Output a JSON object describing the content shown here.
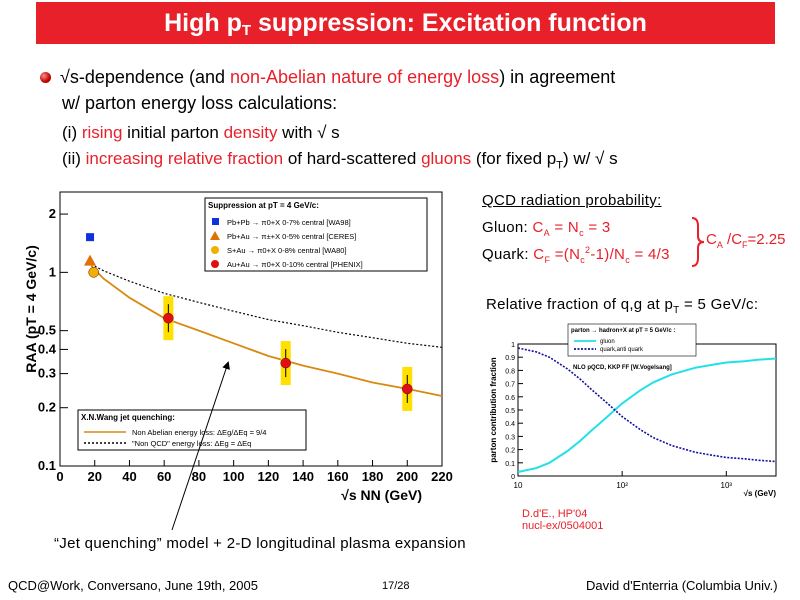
{
  "title": {
    "main": "High p",
    "sub": "T",
    "rest": " suppression: Excitation function"
  },
  "bullet": {
    "line1a": "√s-dependence (and ",
    "line1b": "non-Abelian nature of energy loss",
    "line1c": ") in agreement",
    "line2": "w/ parton energy loss calculations:"
  },
  "item1": {
    "a": "(i) ",
    "b": "rising",
    "c": " initial parton ",
    "d": "density",
    "e": " with √ s"
  },
  "item2": {
    "a": "(ii) ",
    "b": "increasing relative fraction",
    "c": " of hard-scattered ",
    "d": "gluons",
    "e": " (for fixed p",
    "f": "T",
    "g": ") w/ √ s"
  },
  "qcd": {
    "heading": "QCD radiation probability:",
    "gluon_a": "Gluon: ",
    "gluon_b": "C",
    "gluon_c": "A",
    "gluon_d": " = N",
    "gluon_e": "c",
    "gluon_f": " = 3",
    "quark_a": "Quark: ",
    "quark_b": "C",
    "quark_c": "F",
    "quark_d": " =(N",
    "quark_e": "c",
    "quark_f": "2",
    "quark_g": "-1)/N",
    "quark_h": "c",
    "quark_i": " = 4/3",
    "ratio_a": "C",
    "ratio_b": "A",
    "ratio_c": " /C",
    "ratio_d": "F",
    "ratio_e": "=2.25"
  },
  "fraction_caption": {
    "a": "Relative fraction of q,g at p",
    "b": "T",
    "c": " = 5 GeV/c:"
  },
  "jet_caption": "“Jet quenching” model + 2-D longitudinal plasma expansion",
  "reference": {
    "line1": "D.d'E., HP'04",
    "line2": "nucl-ex/0504001"
  },
  "footer": {
    "left": "QCD@Work, Conversano, June 19th, 2005",
    "center": "17/28",
    "right": "David d'Enterria (Columbia Univ.)"
  },
  "colors": {
    "accent": "#e8202a",
    "orange": "#d88a10",
    "cyan": "#22e0e8",
    "navy": "#1010a0"
  },
  "chart_data": [
    {
      "type": "scatter",
      "xlabel": "√s NN (GeV)",
      "ylabel": "RAA (pT = 4 GeV/c)",
      "xlim": [
        0,
        220
      ],
      "ylim": [
        0.1,
        2.6
      ],
      "yscale": "log",
      "x_ticks": [
        "0",
        "20",
        "40",
        "60",
        "80",
        "100",
        "120",
        "140",
        "160",
        "180",
        "200",
        "220"
      ],
      "y_ticks": [
        "0.1",
        "0.2",
        "0.3",
        "0.4",
        "0.5",
        "1",
        "2"
      ],
      "legend_title": "Suppression at pT = 4 GeV/c:",
      "series": [
        {
          "name": "Pb+Pb → π0+X  0-7% central [WA98]",
          "color": "#1030e0",
          "marker": "square",
          "points": [
            {
              "x": 17.3,
              "y": 1.52
            }
          ]
        },
        {
          "name": "Pb+Au → π±+X  0-5% central [CERES]",
          "color": "#e07000",
          "marker": "triangle",
          "points": [
            {
              "x": 17.3,
              "y": 1.15
            }
          ]
        },
        {
          "name": "S+Au → π0+X  0-8% central [WA80]",
          "color": "#f0b000",
          "marker": "circle",
          "points": [
            {
              "x": 19.4,
              "y": 1.0
            }
          ]
        },
        {
          "name": "Au+Au → π0+X  0-10% central [PHENIX]",
          "color": "#e01010",
          "marker": "circle",
          "points": [
            {
              "x": 62.4,
              "y": 0.58
            },
            {
              "x": 130,
              "y": 0.34
            },
            {
              "x": 200,
              "y": 0.25
            }
          ]
        }
      ],
      "theory_legend_title": "X.N.Wang jet quenching:",
      "curves": [
        {
          "name": "Non Abelian energy loss: ΔEg/ΔEq = 9/4",
          "style": "solid",
          "color": "#d88a10",
          "points": [
            [
              18,
              1.08
            ],
            [
              25,
              0.93
            ],
            [
              40,
              0.74
            ],
            [
              60,
              0.58
            ],
            [
              80,
              0.5
            ],
            [
              100,
              0.43
            ],
            [
              120,
              0.37
            ],
            [
              140,
              0.33
            ],
            [
              160,
              0.3
            ],
            [
              180,
              0.27
            ],
            [
              200,
              0.25
            ],
            [
              220,
              0.23
            ]
          ]
        },
        {
          "name": "\"Non QCD\" energy loss: ΔEg = ΔEq",
          "style": "dotted",
          "color": "#000000",
          "points": [
            [
              18,
              1.1
            ],
            [
              25,
              1.02
            ],
            [
              40,
              0.9
            ],
            [
              60,
              0.78
            ],
            [
              80,
              0.7
            ],
            [
              100,
              0.63
            ],
            [
              120,
              0.57
            ],
            [
              140,
              0.53
            ],
            [
              160,
              0.49
            ],
            [
              180,
              0.46
            ],
            [
              200,
              0.43
            ],
            [
              220,
              0.41
            ]
          ]
        }
      ]
    },
    {
      "type": "line",
      "xlabel": "√s (GeV)",
      "ylabel": "parton contribution fraction",
      "xscale": "log",
      "xlim": [
        10,
        3000
      ],
      "ylim": [
        0,
        1
      ],
      "x_ticks": [
        "10",
        "10²",
        "10³"
      ],
      "y_ticks": [
        "0",
        "0.1",
        "0.2",
        "0.3",
        "0.4",
        "0.5",
        "0.6",
        "0.7",
        "0.8",
        "0.9",
        "1"
      ],
      "legend_title": "parton → hadron+X at pT = 5 GeV/c :",
      "annotation": "NLO pQCD, KKP FF [W.Vogelsang]",
      "series": [
        {
          "name": "gluon",
          "color": "#22e0e8",
          "style": "solid",
          "points": [
            [
              10,
              0.03
            ],
            [
              15,
              0.06
            ],
            [
              20,
              0.1
            ],
            [
              30,
              0.19
            ],
            [
              40,
              0.27
            ],
            [
              50,
              0.34
            ],
            [
              70,
              0.44
            ],
            [
              100,
              0.55
            ],
            [
              150,
              0.65
            ],
            [
              200,
              0.71
            ],
            [
              300,
              0.77
            ],
            [
              500,
              0.82
            ],
            [
              700,
              0.84
            ],
            [
              1000,
              0.86
            ],
            [
              1500,
              0.87
            ],
            [
              2000,
              0.88
            ],
            [
              3000,
              0.89
            ]
          ]
        },
        {
          "name": "quark,anti quark",
          "color": "#1010a0",
          "style": "dotted",
          "points": [
            [
              10,
              0.97
            ],
            [
              15,
              0.94
            ],
            [
              20,
              0.9
            ],
            [
              30,
              0.81
            ],
            [
              40,
              0.73
            ],
            [
              50,
              0.66
            ],
            [
              70,
              0.56
            ],
            [
              100,
              0.45
            ],
            [
              150,
              0.35
            ],
            [
              200,
              0.29
            ],
            [
              300,
              0.23
            ],
            [
              500,
              0.18
            ],
            [
              700,
              0.16
            ],
            [
              1000,
              0.14
            ],
            [
              1500,
              0.13
            ],
            [
              2000,
              0.12
            ],
            [
              3000,
              0.11
            ]
          ]
        }
      ]
    }
  ]
}
